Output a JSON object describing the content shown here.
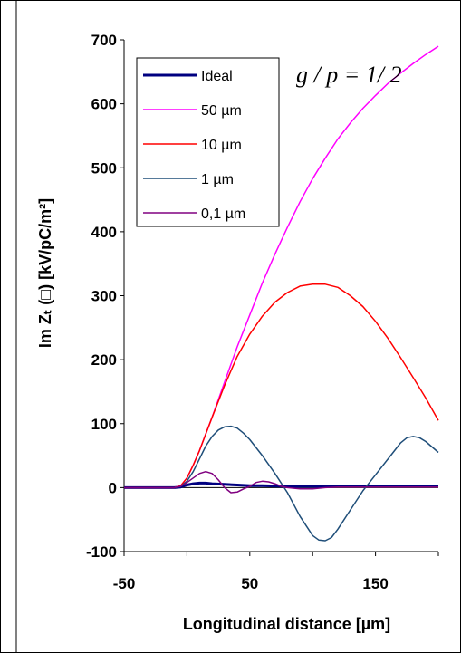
{
  "chart_data": {
    "type": "line",
    "title": "",
    "xlabel": "Longitudinal distance [µm]",
    "ylabel": "Im Zₜ (□) [kV/pC/m²]",
    "xlim": [
      -50,
      200
    ],
    "ylim": [
      -100,
      700
    ],
    "x_ticks": [
      "-50",
      "50",
      "150"
    ],
    "y_ticks": [
      "700",
      "600",
      "500",
      "400",
      "300",
      "200",
      "100",
      "0",
      "-100"
    ],
    "annotation": "g / p = 1/ 2",
    "grid": false,
    "legend_position": "top-left",
    "series": [
      {
        "name": "Ideal",
        "color": "#000080",
        "width": 3,
        "x": [
          -50,
          -10,
          -5,
          0,
          5,
          10,
          15,
          20,
          30,
          40,
          50,
          60,
          80,
          100,
          120,
          140,
          160,
          180,
          200
        ],
        "y": [
          0,
          0,
          1,
          4,
          6,
          7,
          7,
          6,
          5,
          4,
          3,
          3,
          2,
          2,
          2,
          2,
          2,
          2,
          2
        ]
      },
      {
        "name": "50 µm",
        "color": "#ff00ff",
        "width": 1.5,
        "x": [
          -50,
          -10,
          -5,
          0,
          5,
          10,
          20,
          30,
          40,
          50,
          60,
          70,
          80,
          90,
          100,
          110,
          120,
          130,
          140,
          150,
          160,
          170,
          180,
          190,
          200
        ],
        "y": [
          0,
          0,
          3,
          15,
          35,
          58,
          110,
          165,
          220,
          270,
          320,
          365,
          407,
          447,
          483,
          515,
          545,
          570,
          593,
          613,
          632,
          648,
          663,
          677,
          690
        ]
      },
      {
        "name": "10 µm",
        "color": "#ff0000",
        "width": 1.5,
        "x": [
          -50,
          -10,
          -5,
          0,
          5,
          10,
          20,
          30,
          40,
          50,
          60,
          70,
          80,
          90,
          100,
          110,
          120,
          130,
          140,
          150,
          160,
          170,
          180,
          190,
          200
        ],
        "y": [
          0,
          0,
          3,
          15,
          35,
          58,
          110,
          160,
          205,
          240,
          268,
          290,
          305,
          315,
          318,
          318,
          313,
          300,
          283,
          260,
          233,
          203,
          172,
          140,
          105
        ]
      },
      {
        "name": "1 µm",
        "color": "#1f4e79",
        "width": 1.5,
        "x": [
          -50,
          -10,
          -5,
          0,
          5,
          10,
          15,
          20,
          25,
          30,
          35,
          40,
          45,
          50,
          60,
          70,
          80,
          90,
          100,
          105,
          110,
          115,
          120,
          130,
          140,
          150,
          160,
          170,
          175,
          180,
          185,
          190,
          200
        ],
        "y": [
          0,
          0,
          2,
          10,
          25,
          45,
          65,
          80,
          90,
          95,
          96,
          93,
          85,
          75,
          50,
          22,
          -8,
          -45,
          -75,
          -82,
          -83,
          -78,
          -65,
          -35,
          -5,
          20,
          45,
          70,
          78,
          80,
          78,
          72,
          55
        ]
      },
      {
        "name": "0,1 µm",
        "color": "#800080",
        "width": 1.5,
        "x": [
          -50,
          -10,
          -5,
          0,
          5,
          10,
          15,
          20,
          25,
          30,
          35,
          40,
          45,
          50,
          55,
          60,
          65,
          70,
          75,
          80,
          90,
          100,
          110,
          120,
          140,
          160,
          180,
          200
        ],
        "y": [
          0,
          0,
          2,
          8,
          15,
          22,
          25,
          22,
          12,
          0,
          -8,
          -7,
          -2,
          2,
          8,
          10,
          9,
          6,
          2,
          0,
          -2,
          -2,
          0,
          1,
          1,
          1,
          1,
          1
        ]
      }
    ]
  }
}
